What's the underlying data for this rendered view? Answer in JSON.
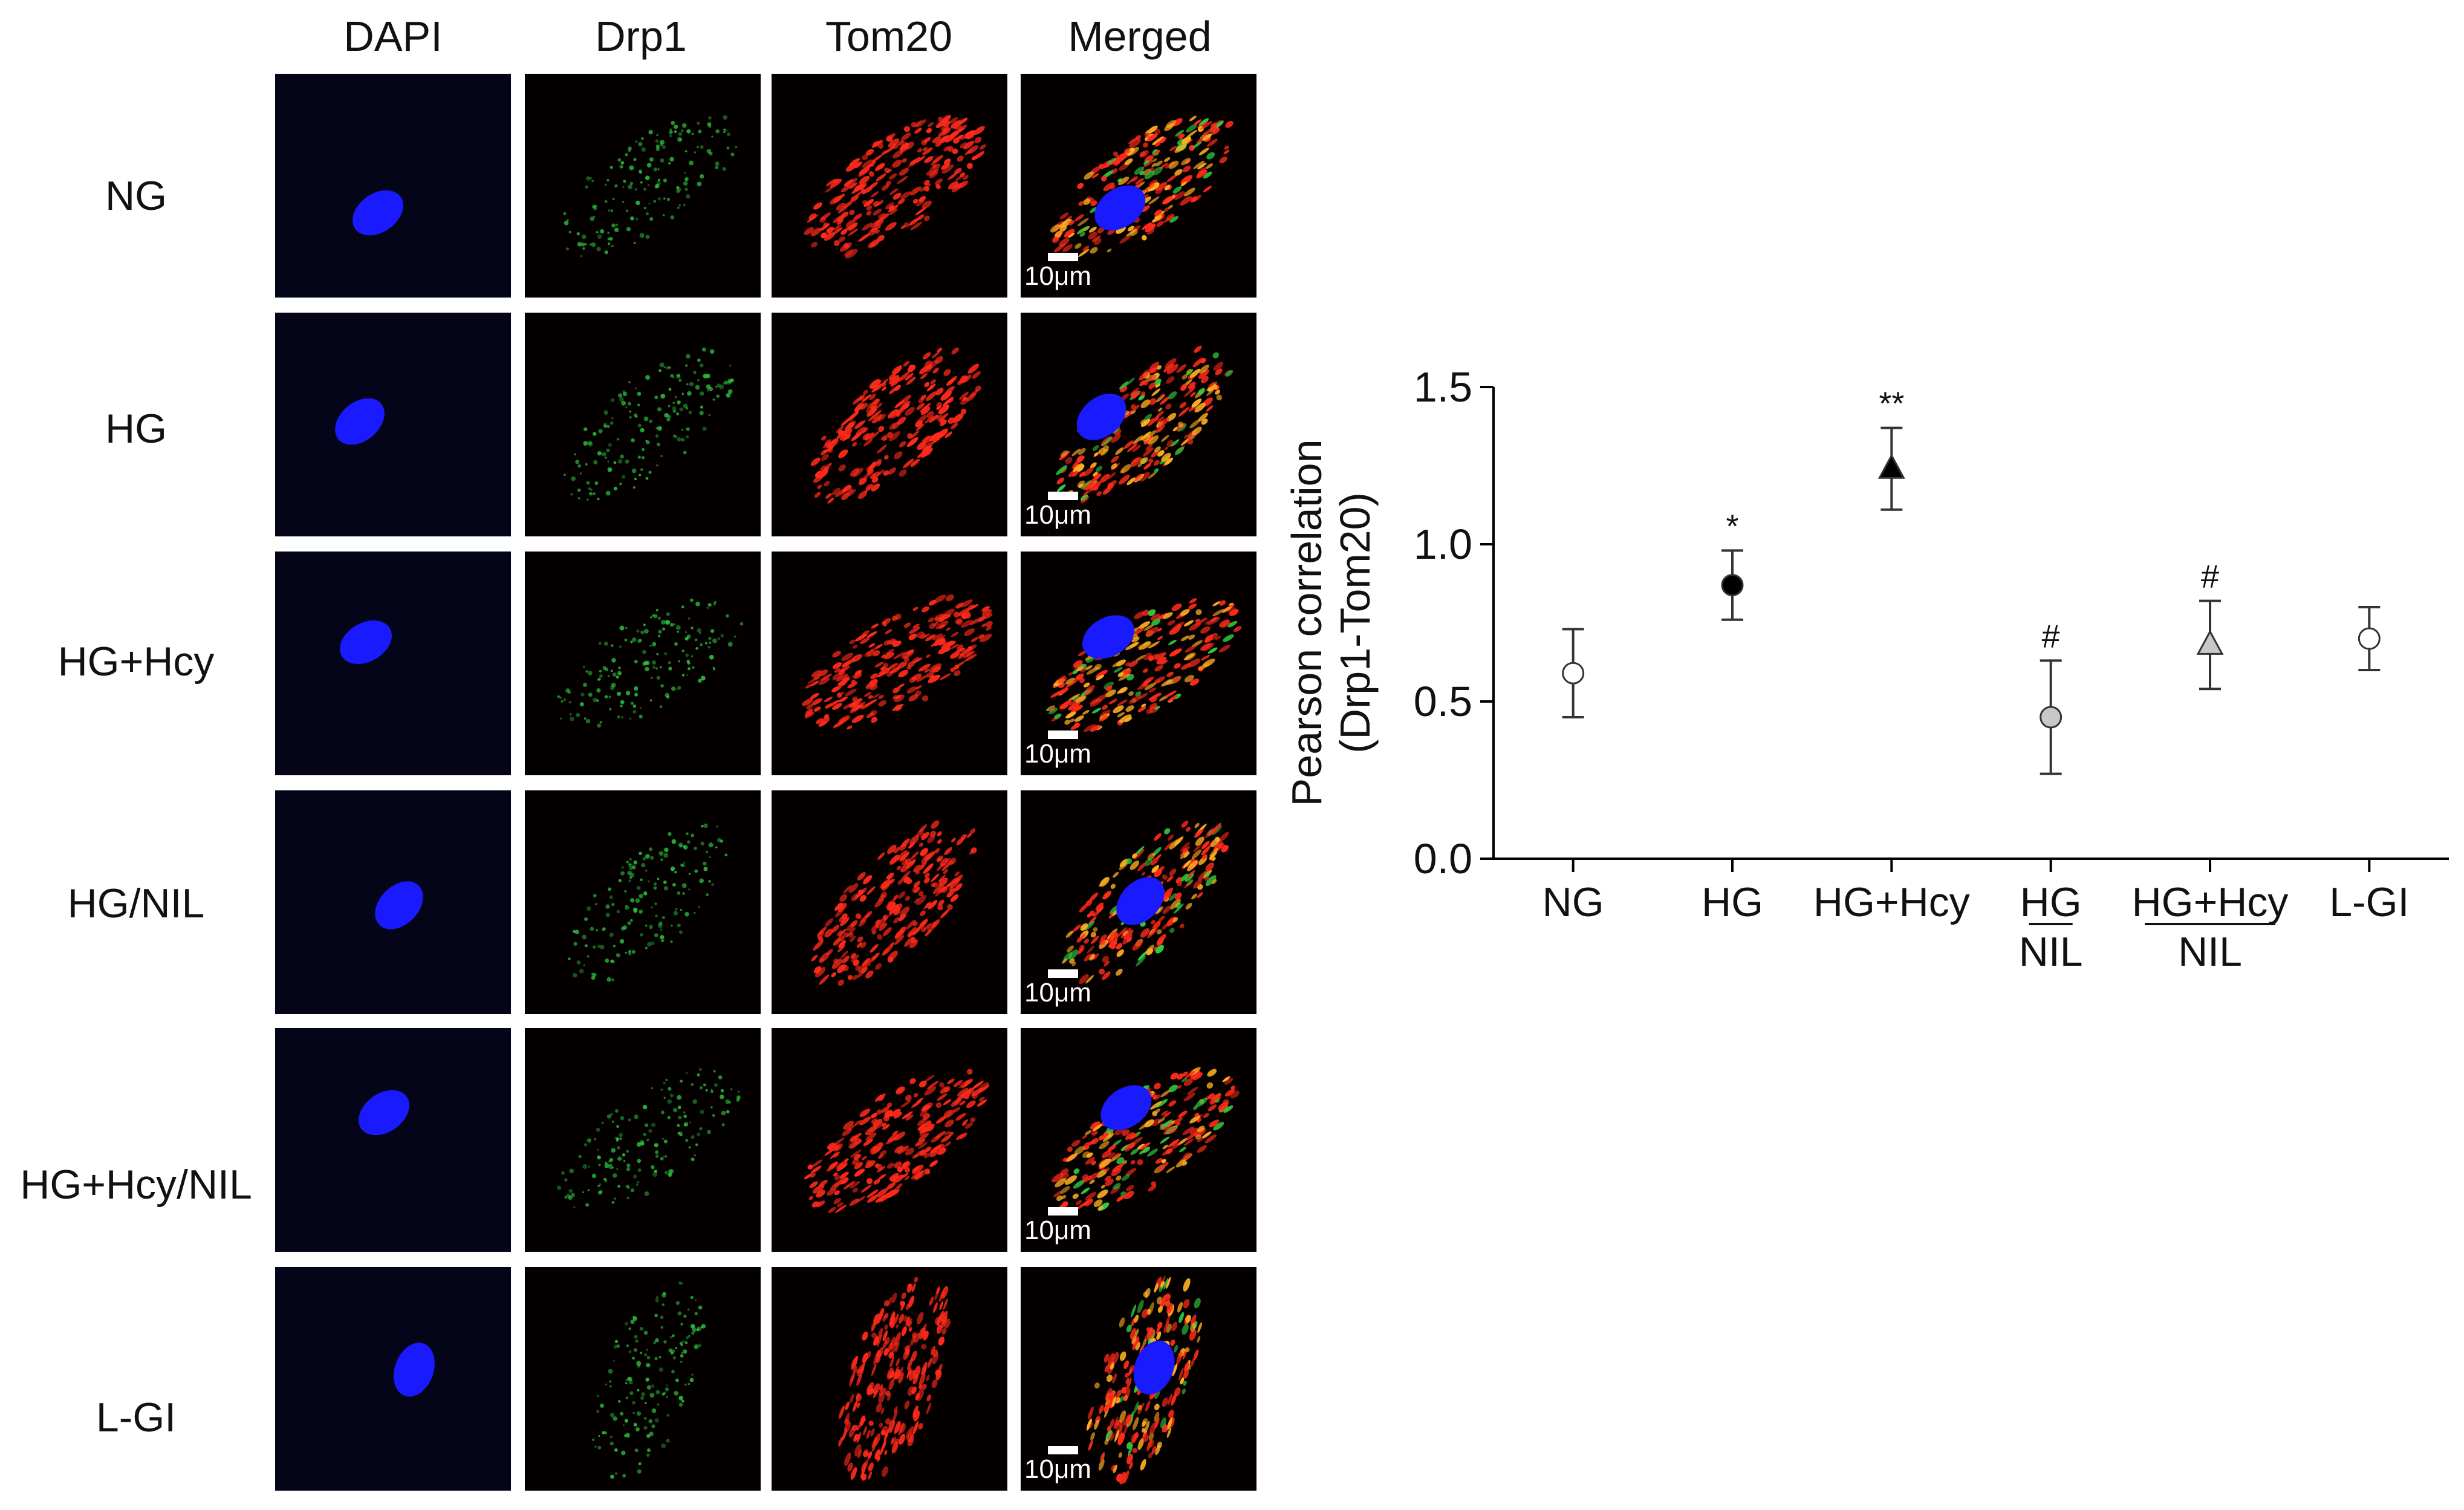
{
  "figure": {
    "columns": [
      "DAPI",
      "Drp1",
      "Tom20",
      "Merged"
    ],
    "rows": [
      "NG",
      "HG",
      "HG+Hcy",
      "HG/NIL",
      "HG+Hcy/NIL",
      "L-GI"
    ],
    "scale_label": "10μm",
    "channel_colors": {
      "DAPI": "#1a1aff",
      "Drp1": "#2ecc40",
      "Tom20": "#ff2a1a",
      "Merged": "#ff5a1a"
    }
  },
  "chart_data": {
    "type": "scatter",
    "categories": [
      "NG",
      "HG",
      "HG+Hcy",
      "HG\nNIL",
      "HG+Hcy\nNIL",
      "L-GI"
    ],
    "values": [
      0.59,
      0.87,
      1.24,
      0.45,
      0.68,
      0.7
    ],
    "error": [
      0.14,
      0.11,
      0.13,
      0.18,
      0.14,
      0.1
    ],
    "markers": [
      "circle-open",
      "circle-filled",
      "triangle-filled",
      "circle-gray",
      "triangle-gray",
      "circle-open"
    ],
    "annotations": [
      "",
      "*",
      "**",
      "#",
      "#",
      ""
    ],
    "ylabel": "Pearson correlation",
    "ylabel2": "(Drp1-Tom20)",
    "ylim": [
      0,
      1.5
    ],
    "yticks": [
      "0.0",
      "0.5",
      "1.0",
      "1.5"
    ],
    "grid": false
  }
}
